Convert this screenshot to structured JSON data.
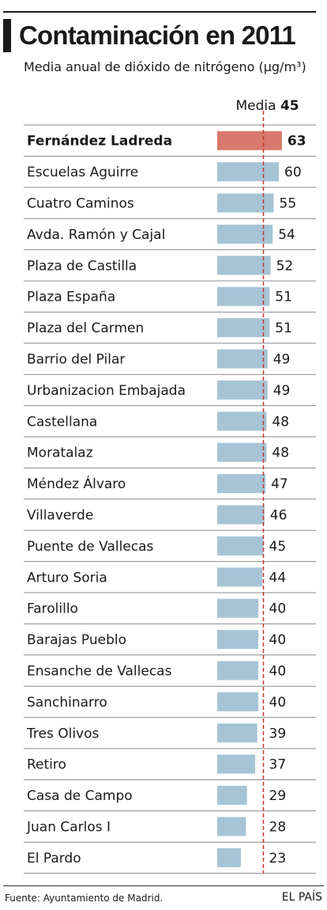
{
  "header": {
    "title": "Contaminación en 2011",
    "subtitle": "Media anual de dióxido de nitrógeno (µg/m³)"
  },
  "footer": {
    "source": "Fuente: Ayuntamiento de Madrid.",
    "brand": "EL PAÍS"
  },
  "colors": {
    "highlight": "#d9786c",
    "bar": "#a6c4d6",
    "rule": "#8a8a8a",
    "average_line": "#c0392b"
  },
  "chart_data": {
    "type": "bar",
    "orientation": "horizontal",
    "title": "Contaminación en 2011",
    "subtitle": "Media anual de dióxido de nitrógeno (µg/m³)",
    "reference_line": {
      "label": "Media",
      "value": 45
    },
    "highlight_category": "Fernández Ladreda",
    "categories": [
      "Fernández Ladreda",
      "Escuelas Aguirre",
      "Cuatro Caminos",
      "Avda. Ramón y Cajal",
      "Plaza de Castilla",
      "Plaza España",
      "Plaza del Carmen",
      "Barrio del Pilar",
      "Urbanizacion Embajada",
      "Castellana",
      "Moratalaz",
      "Méndez Álvaro",
      "Villaverde",
      "Puente de Vallecas",
      "Arturo Soria",
      "Farolillo",
      "Barajas Pueblo",
      "Ensanche de Vallecas",
      "Sanchinarro",
      "Tres Olivos",
      "Retiro",
      "Casa de Campo",
      "Juan Carlos I",
      "El Pardo"
    ],
    "values": [
      63,
      60,
      55,
      54,
      52,
      51,
      51,
      49,
      49,
      48,
      48,
      47,
      46,
      45,
      44,
      40,
      40,
      40,
      40,
      39,
      37,
      29,
      28,
      23
    ]
  }
}
